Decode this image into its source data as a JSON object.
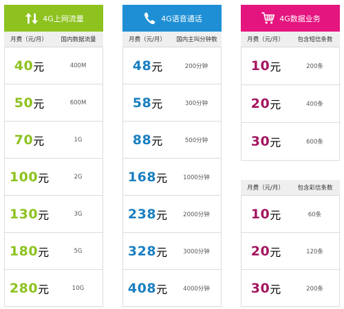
{
  "data_panel": {
    "title": "4G上网流量",
    "icon": "updown-arrows-icon",
    "col_price": "月费（元/月）",
    "col_amount": "国内数据流量",
    "rows": [
      {
        "price": "40",
        "unit": "元",
        "amount": "400M"
      },
      {
        "price": "50",
        "unit": "元",
        "amount": "600M"
      },
      {
        "price": "70",
        "unit": "元",
        "amount": "1G"
      },
      {
        "price": "100",
        "unit": "元",
        "amount": "2G"
      },
      {
        "price": "130",
        "unit": "元",
        "amount": "3G"
      },
      {
        "price": "180",
        "unit": "元",
        "amount": "5G"
      },
      {
        "price": "280",
        "unit": "元",
        "amount": "10G"
      }
    ]
  },
  "voice_panel": {
    "title": "4G语音通话",
    "icon": "phone-icon",
    "col_price": "月费（元/月）",
    "col_amount": "国内主叫分钟数",
    "rows": [
      {
        "price": "48",
        "unit": "元",
        "amount": "200分钟"
      },
      {
        "price": "58",
        "unit": "元",
        "amount": "300分钟"
      },
      {
        "price": "88",
        "unit": "元",
        "amount": "500分钟"
      },
      {
        "price": "168",
        "unit": "元",
        "amount": "1000分钟"
      },
      {
        "price": "238",
        "unit": "元",
        "amount": "2000分钟"
      },
      {
        "price": "328",
        "unit": "元",
        "amount": "3000分钟"
      },
      {
        "price": "408",
        "unit": "元",
        "amount": "4000分钟"
      }
    ]
  },
  "sms_panel": {
    "title": "4G数据业务",
    "icon": "shopping-cart-icon",
    "col_price": "月费（元/月）",
    "col_amount": "包含短信条数",
    "rows": [
      {
        "price": "10",
        "unit": "元",
        "amount": "200条"
      },
      {
        "price": "20",
        "unit": "元",
        "amount": "400条"
      },
      {
        "price": "30",
        "unit": "元",
        "amount": "600条"
      }
    ]
  },
  "mms_panel": {
    "col_price": "月费（元/月）",
    "col_amount": "包含彩信条数",
    "rows": [
      {
        "price": "10",
        "unit": "元",
        "amount": "60条"
      },
      {
        "price": "20",
        "unit": "元",
        "amount": "120条"
      },
      {
        "price": "30",
        "unit": "元",
        "amount": "200条"
      }
    ]
  },
  "colors": {
    "green": "#8dc21f",
    "blue": "#1e8fd5",
    "pink": "#e4157f",
    "pink_text": "#a3155f"
  }
}
